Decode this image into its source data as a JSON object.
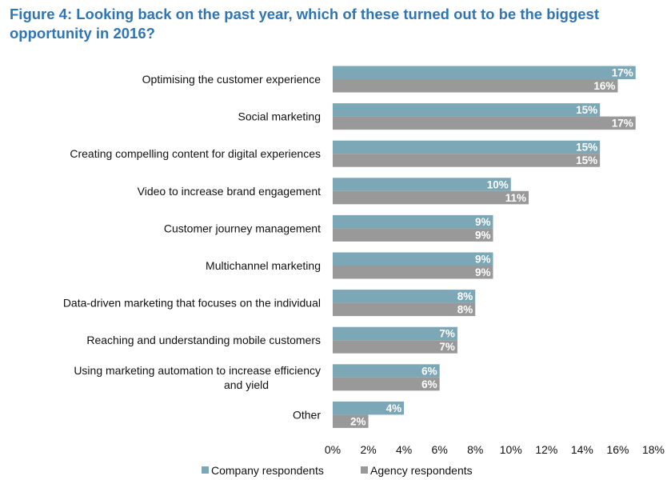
{
  "figure": {
    "title": "Figure 4: Looking back on the past year, which of these turned out to be the biggest opportunity in 2016?"
  },
  "colors": {
    "company": "#7BA7B6",
    "agency": "#999999",
    "title": "#2E75B6"
  },
  "chart_data": {
    "type": "bar",
    "orientation": "horizontal",
    "title": "Figure 4: Looking back on the past year, which of these turned out to be the biggest opportunity in 2016?",
    "categories": [
      "Optimising the customer experience",
      "Social marketing",
      "Creating compelling content for digital experiences",
      "Video to increase brand engagement",
      "Customer journey management",
      "Multichannel marketing",
      "Data-driven marketing that focuses on the individual",
      "Reaching and understanding mobile customers",
      "Using marketing automation to increase efficiency and yield",
      "Other"
    ],
    "series": [
      {
        "name": "Company respondents",
        "values": [
          17,
          15,
          15,
          10,
          9,
          9,
          8,
          7,
          6,
          4
        ]
      },
      {
        "name": "Agency respondents",
        "values": [
          16,
          17,
          15,
          11,
          9,
          9,
          8,
          7,
          6,
          2
        ]
      }
    ],
    "xlim": [
      0,
      18
    ],
    "xticks": [
      "0%",
      "2%",
      "4%",
      "6%",
      "8%",
      "10%",
      "12%",
      "14%",
      "16%",
      "18%"
    ],
    "xlabel": "",
    "ylabel": "",
    "value_suffix": "%",
    "grid": false,
    "legend_position": "bottom"
  }
}
